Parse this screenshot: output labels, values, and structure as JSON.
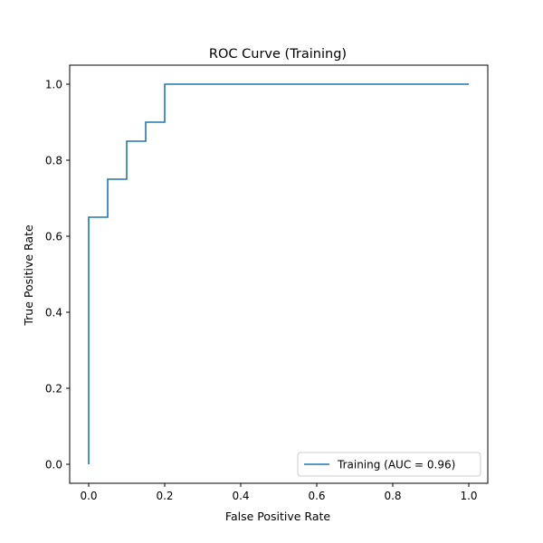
{
  "chart_data": {
    "type": "line",
    "title": "ROC Curve (Training)",
    "xlabel": "False Positive Rate",
    "ylabel": "True Positive Rate",
    "xlim": [
      -0.05,
      1.05
    ],
    "ylim": [
      -0.05,
      1.05
    ],
    "xticks": [
      0.0,
      0.2,
      0.4,
      0.6,
      0.8,
      1.0
    ],
    "yticks": [
      0.0,
      0.2,
      0.4,
      0.6,
      0.8,
      1.0
    ],
    "xtick_labels": [
      "0.0",
      "0.2",
      "0.4",
      "0.6",
      "0.8",
      "1.0"
    ],
    "ytick_labels": [
      "0.0",
      "0.2",
      "0.4",
      "0.6",
      "0.8",
      "1.0"
    ],
    "grid": false,
    "legend_position": "lower-right",
    "series": [
      {
        "name": "Training (AUC = 0.96)",
        "color": "#1f77b4",
        "x": [
          0.0,
          0.0,
          0.05,
          0.05,
          0.1,
          0.1,
          0.15,
          0.15,
          0.2,
          0.2,
          1.0
        ],
        "y": [
          0.0,
          0.65,
          0.65,
          0.75,
          0.75,
          0.85,
          0.85,
          0.9,
          0.9,
          1.0,
          1.0
        ]
      }
    ]
  }
}
